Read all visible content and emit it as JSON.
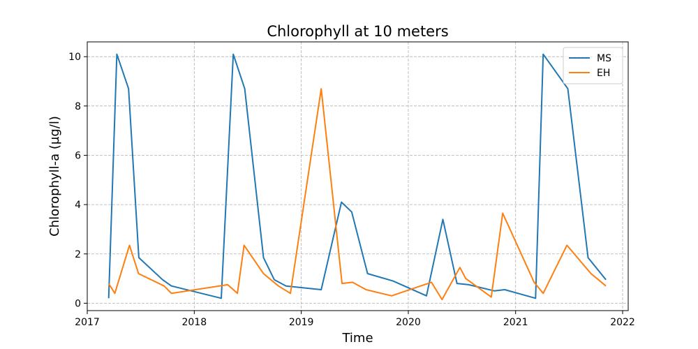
{
  "chart_data": {
    "type": "line",
    "title": "Chlorophyll at 10 meters",
    "xlabel": "Time",
    "ylabel": "Chlorophyll-a (µg/l)",
    "xlim": [
      "2017-01-01",
      "2022-01-20"
    ],
    "ylim": [
      -0.3,
      10.6
    ],
    "xticks": [
      {
        "date": "2017-01-01",
        "label": "2017"
      },
      {
        "date": "2018-01-01",
        "label": "2018"
      },
      {
        "date": "2019-01-01",
        "label": "2019"
      },
      {
        "date": "2020-01-01",
        "label": "2020"
      },
      {
        "date": "2021-01-01",
        "label": "2021"
      },
      {
        "date": "2022-01-01",
        "label": "2022"
      }
    ],
    "yticks": [
      0,
      2,
      4,
      6,
      8,
      10
    ],
    "grid": true,
    "legend_position": "top-right",
    "series": [
      {
        "name": "MS",
        "color": "#1f77b4",
        "points": [
          [
            "2017-03-15",
            0.2
          ],
          [
            "2017-04-12",
            10.1
          ],
          [
            "2017-05-22",
            8.7
          ],
          [
            "2017-06-26",
            1.85
          ],
          [
            "2017-09-15",
            0.95
          ],
          [
            "2017-10-15",
            0.7
          ],
          [
            "2018-04-03",
            0.2
          ],
          [
            "2018-05-14",
            10.1
          ],
          [
            "2018-06-22",
            8.7
          ],
          [
            "2018-08-25",
            1.85
          ],
          [
            "2018-10-01",
            0.95
          ],
          [
            "2018-11-10",
            0.7
          ],
          [
            "2019-03-10",
            0.55
          ],
          [
            "2019-05-18",
            4.1
          ],
          [
            "2019-06-22",
            3.7
          ],
          [
            "2019-08-15",
            1.2
          ],
          [
            "2019-11-10",
            0.9
          ],
          [
            "2020-03-03",
            0.3
          ],
          [
            "2020-04-28",
            3.4
          ],
          [
            "2020-06-15",
            0.8
          ],
          [
            "2020-07-25",
            0.75
          ],
          [
            "2020-10-20",
            0.5
          ],
          [
            "2020-11-25",
            0.55
          ],
          [
            "2021-03-10",
            0.2
          ],
          [
            "2021-04-05",
            10.1
          ],
          [
            "2021-06-28",
            8.7
          ],
          [
            "2021-09-05",
            1.85
          ],
          [
            "2021-11-05",
            0.95
          ]
        ]
      },
      {
        "name": "EH",
        "color": "#ff7f0e",
        "points": [
          [
            "2017-03-15",
            0.8
          ],
          [
            "2017-04-05",
            0.4
          ],
          [
            "2017-05-25",
            2.35
          ],
          [
            "2017-06-25",
            1.2
          ],
          [
            "2017-09-20",
            0.7
          ],
          [
            "2017-10-15",
            0.4
          ],
          [
            "2018-04-25",
            0.75
          ],
          [
            "2018-05-28",
            0.4
          ],
          [
            "2018-06-20",
            2.35
          ],
          [
            "2018-08-25",
            1.2
          ],
          [
            "2018-10-15",
            0.7
          ],
          [
            "2018-11-25",
            0.4
          ],
          [
            "2019-03-10",
            8.7
          ],
          [
            "2019-05-20",
            0.8
          ],
          [
            "2019-06-25",
            0.85
          ],
          [
            "2019-08-10",
            0.55
          ],
          [
            "2019-11-05",
            0.3
          ],
          [
            "2020-03-20",
            0.85
          ],
          [
            "2020-04-25",
            0.15
          ],
          [
            "2020-06-25",
            1.45
          ],
          [
            "2020-07-15",
            1.0
          ],
          [
            "2020-10-10",
            0.25
          ],
          [
            "2020-11-18",
            3.65
          ],
          [
            "2021-03-05",
            0.85
          ],
          [
            "2021-04-05",
            0.4
          ],
          [
            "2021-06-25",
            2.35
          ],
          [
            "2021-09-15",
            1.2
          ],
          [
            "2021-11-05",
            0.7
          ]
        ]
      }
    ]
  }
}
